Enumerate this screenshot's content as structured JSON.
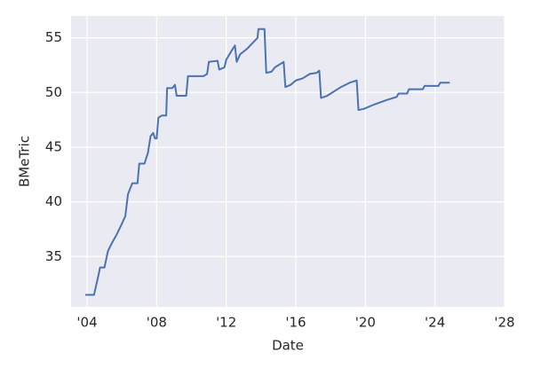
{
  "chart_data": {
    "type": "line",
    "x_label": "Date",
    "y_label": "BMeTric",
    "color": "#4c72b0",
    "grid": true,
    "x": [
      2003.9,
      2004.4,
      2004.6,
      2004.75,
      2005.0,
      2005.2,
      2005.45,
      2005.7,
      2006.0,
      2006.2,
      2006.35,
      2006.6,
      2006.9,
      2007.0,
      2007.3,
      2007.5,
      2007.65,
      2007.8,
      2007.9,
      2008.0,
      2008.1,
      2008.3,
      2008.55,
      2008.6,
      2008.9,
      2009.05,
      2009.15,
      2009.7,
      2009.8,
      2010.7,
      2010.9,
      2011.0,
      2011.5,
      2011.6,
      2011.9,
      2012.0,
      2012.3,
      2012.5,
      2012.6,
      2012.8,
      2013.2,
      2013.5,
      2013.8,
      2013.85,
      2014.2,
      2014.3,
      2014.6,
      2014.8,
      2015.0,
      2015.3,
      2015.4,
      2015.7,
      2016.0,
      2016.4,
      2016.8,
      2017.2,
      2017.35,
      2017.45,
      2017.8,
      2018.2,
      2018.6,
      2019.1,
      2019.5,
      2019.6,
      2019.9,
      2020.5,
      2021.2,
      2021.8,
      2021.9,
      2022.4,
      2022.5,
      2023.3,
      2023.4,
      2024.2,
      2024.3,
      2024.85
    ],
    "values": [
      31.5,
      31.5,
      32.9,
      34.0,
      34.0,
      35.5,
      36.3,
      37.0,
      38.0,
      38.7,
      40.7,
      41.7,
      41.7,
      43.5,
      43.5,
      44.5,
      46.0,
      46.3,
      45.8,
      45.8,
      47.7,
      47.9,
      47.9,
      50.4,
      50.4,
      50.7,
      49.7,
      49.7,
      51.5,
      51.5,
      51.7,
      52.8,
      52.9,
      52.1,
      52.3,
      53.0,
      53.8,
      54.3,
      52.8,
      53.5,
      54.0,
      54.5,
      55.0,
      55.8,
      55.8,
      51.8,
      51.9,
      52.3,
      52.5,
      52.8,
      50.5,
      50.7,
      51.1,
      51.3,
      51.7,
      51.8,
      52.0,
      49.5,
      49.7,
      50.1,
      50.5,
      50.9,
      51.1,
      48.4,
      48.5,
      48.9,
      49.3,
      49.6,
      49.9,
      49.9,
      50.3,
      50.3,
      50.6,
      50.6,
      50.9,
      50.9
    ],
    "xlim": [
      2003.08,
      2028
    ],
    "ylim": [
      30.4,
      57.0
    ],
    "xticks": [
      {
        "value": 2004,
        "label": "'04"
      },
      {
        "value": 2008,
        "label": "'08"
      },
      {
        "value": 2012,
        "label": "'12"
      },
      {
        "value": 2016,
        "label": "'16"
      },
      {
        "value": 2020,
        "label": "'20"
      },
      {
        "value": 2024,
        "label": "'24"
      },
      {
        "value": 2028,
        "label": "'28"
      }
    ],
    "yticks": [
      35,
      40,
      45,
      50,
      55
    ]
  }
}
